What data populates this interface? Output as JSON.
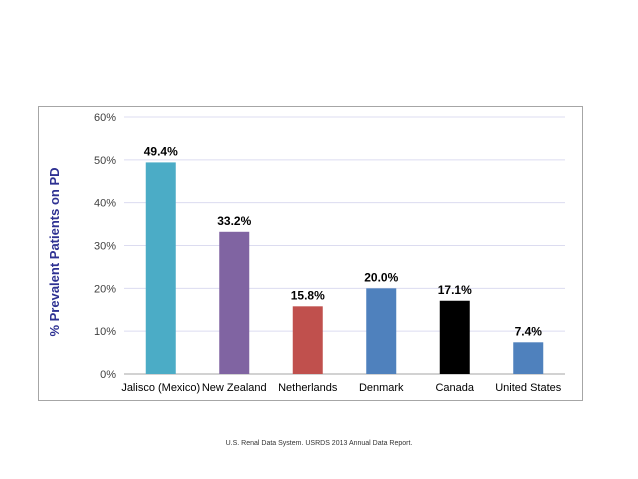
{
  "chart_data": {
    "type": "bar",
    "title": "",
    "xlabel": "",
    "ylabel": "% Prevalent Patients on PD",
    "categories": [
      "Jalisco (Mexico)",
      "New Zealand",
      "Netherlands",
      "Denmark",
      "Canada",
      "United States"
    ],
    "values": [
      49.4,
      33.2,
      15.8,
      20.0,
      17.1,
      7.4
    ],
    "data_labels": [
      "49.4%",
      "33.2%",
      "15.8%",
      "20.0%",
      "17.1%",
      "7.4%"
    ],
    "bar_colors": [
      "#4bacc6",
      "#8064a2",
      "#c0504d",
      "#4f81bd",
      "#000000",
      "#4f81bd"
    ],
    "yticks": [
      0,
      10,
      20,
      30,
      40,
      50,
      60
    ],
    "ytick_labels": [
      "0%",
      "10%",
      "20%",
      "30%",
      "40%",
      "50%",
      "60%"
    ],
    "ylim": [
      0,
      60
    ],
    "grid": true,
    "legend": "none"
  },
  "footer": {
    "source": "U.S. Renal Data System. USRDS 2013 Annual Data Report."
  }
}
